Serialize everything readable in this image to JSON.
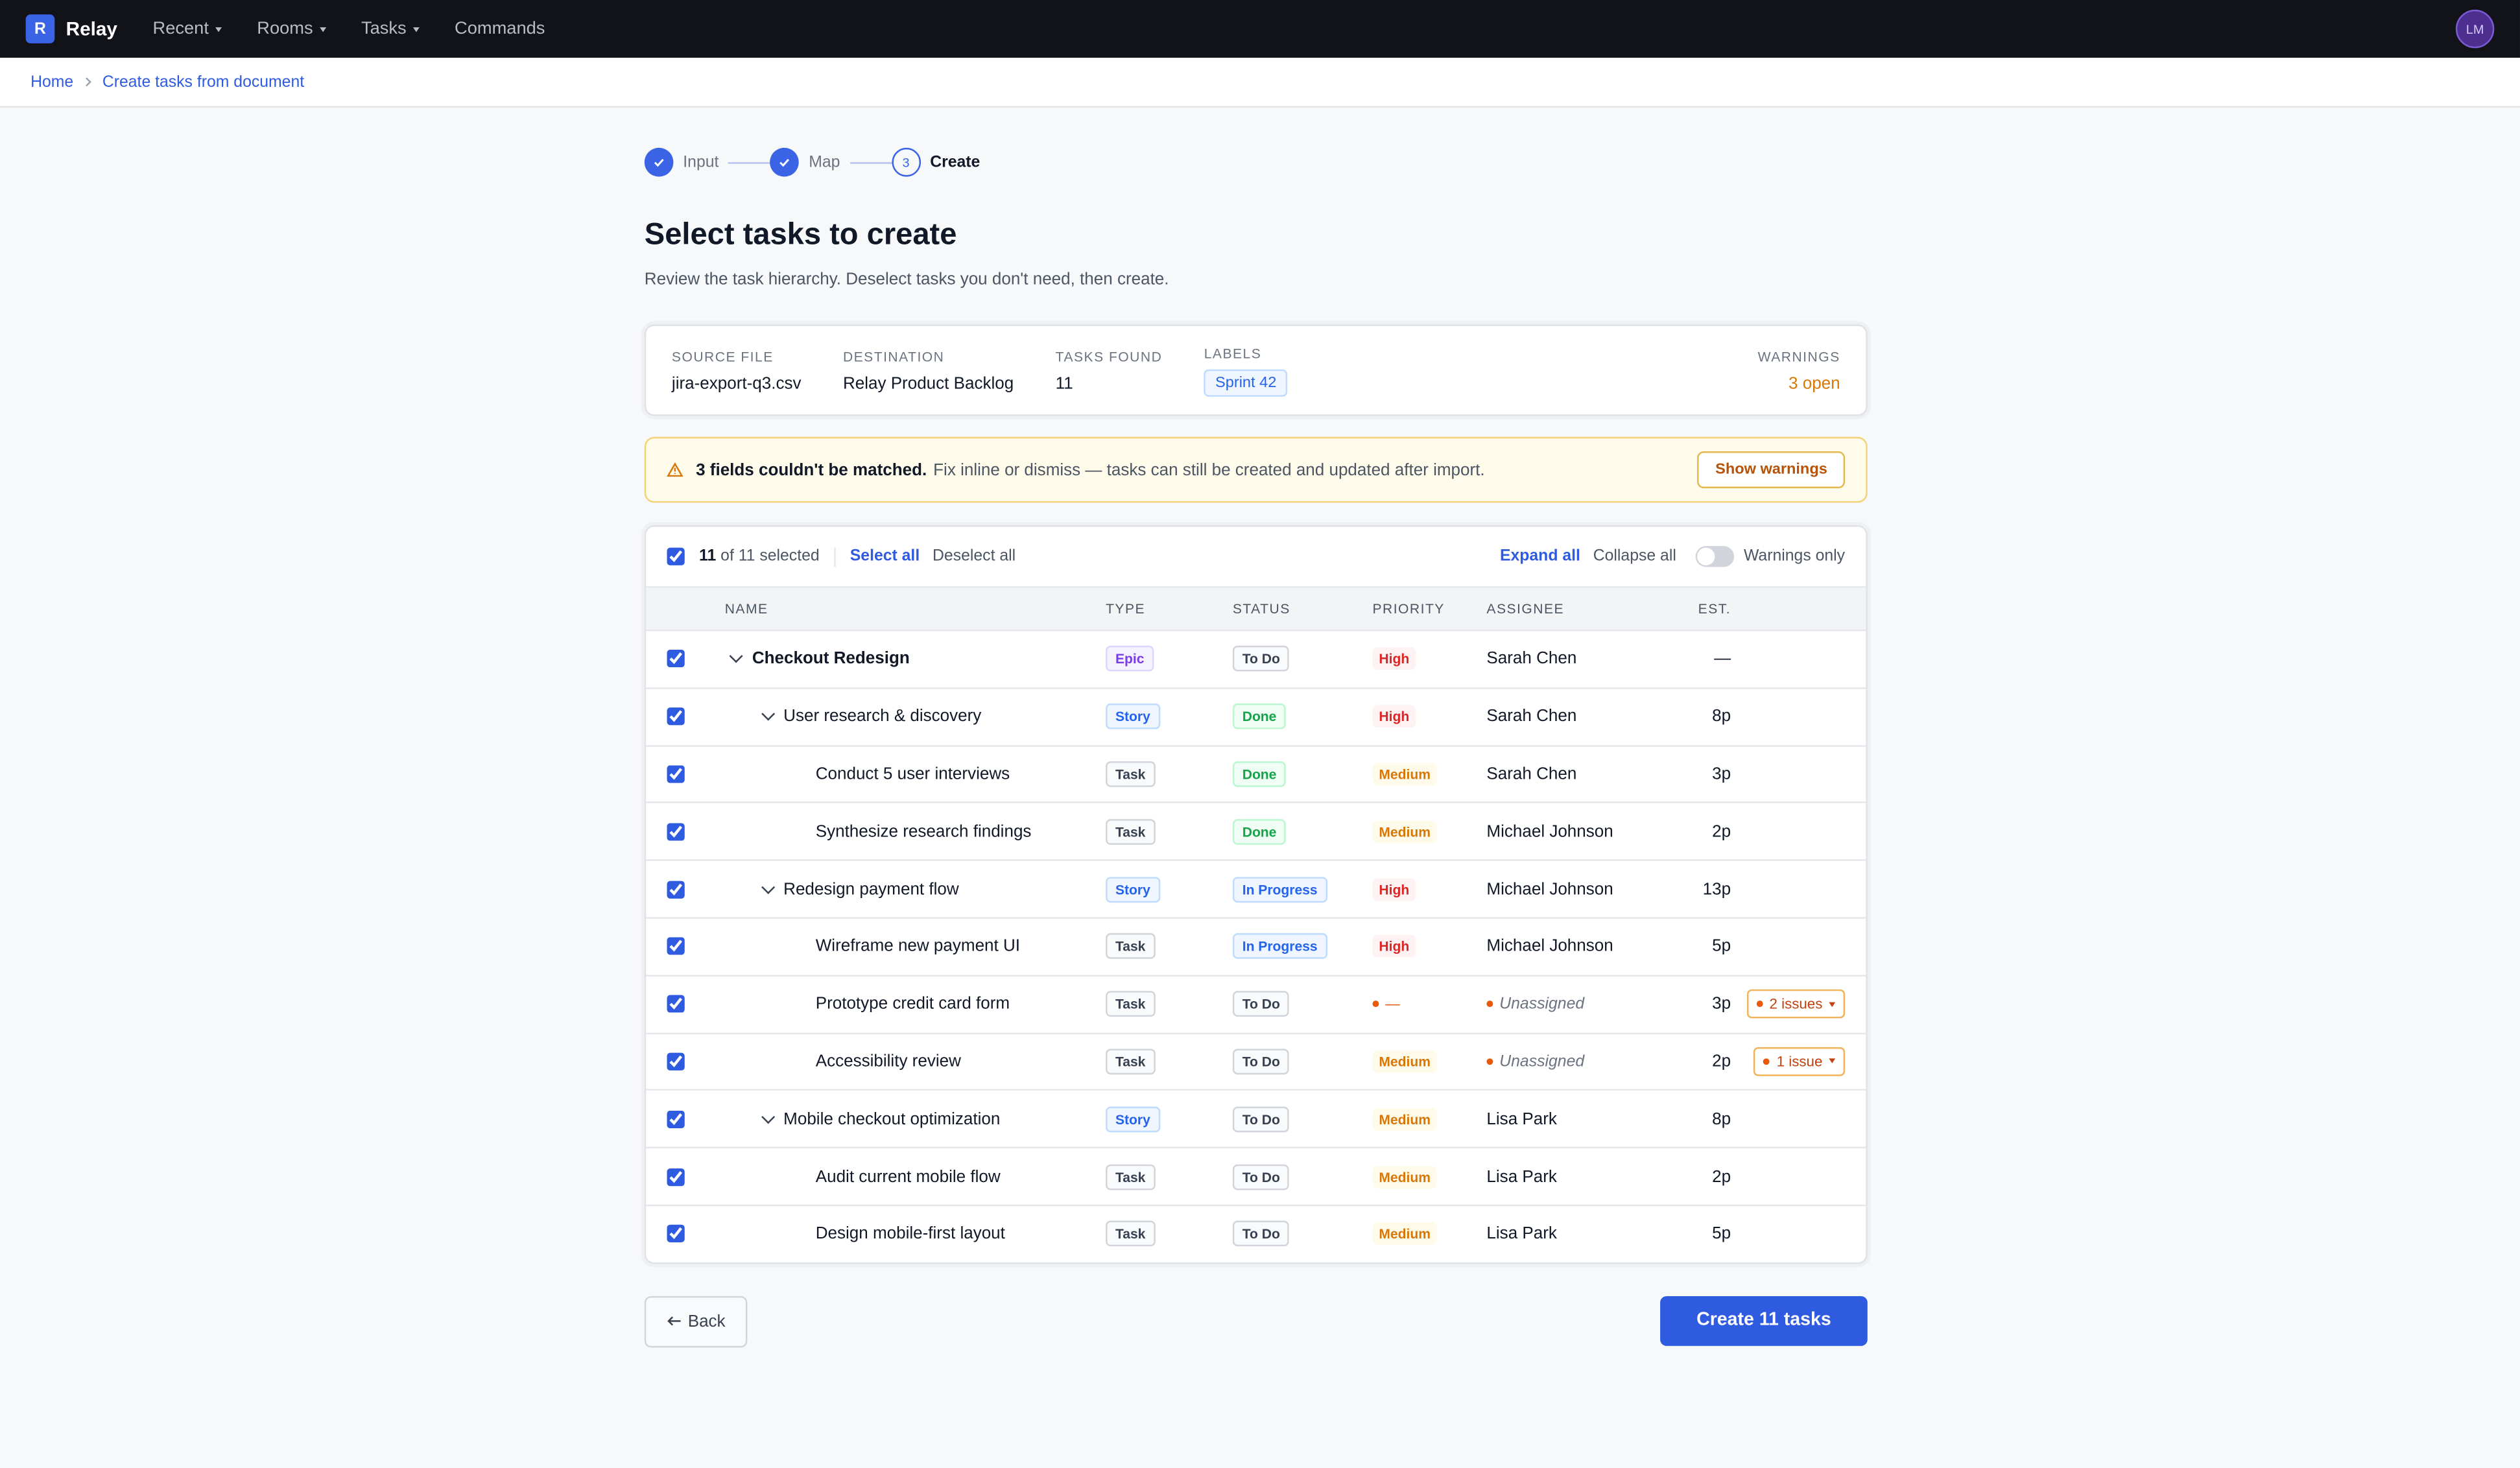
{
  "nav": {
    "logo_letter": "R",
    "brand": "Relay",
    "menu": [
      "Recent",
      "Rooms",
      "Tasks"
    ],
    "commands": "Commands",
    "avatar": "LM"
  },
  "breadcrumb": [
    "Home",
    "Create tasks from document"
  ],
  "steps": [
    {
      "label": "Input",
      "done": true
    },
    {
      "label": "Map",
      "done": true
    },
    {
      "label": "Create",
      "number": "3",
      "done": false
    }
  ],
  "header": {
    "title": "Select tasks to create",
    "subtitle": "Review the task hierarchy. Deselect tasks you don't need, then create."
  },
  "summary": {
    "fields": [
      {
        "label": "SOURCE FILE",
        "value": "jira-export-q3.csv"
      },
      {
        "label": "DESTINATION",
        "value": "Relay Product Backlog"
      },
      {
        "label": "TASKS FOUND",
        "value": "11"
      }
    ],
    "labels_title": "LABELS",
    "labels": [
      "Sprint 42"
    ],
    "warnings_title": "WARNINGS",
    "warnings_value": "3 open"
  },
  "banner": {
    "bold": "3 fields couldn't be matched.",
    "text": "Fix inline or dismiss — tasks can still be created and updated after import.",
    "button": "Show warnings"
  },
  "toolbar": {
    "checked": true,
    "count": "11",
    "count_rest": "of 11 selected",
    "select_all": "Select all",
    "deselect_all": "Deselect all",
    "expand_all": "Expand all",
    "collapse_all": "Collapse all",
    "toggle_on": false,
    "toggle_label": "Warnings only"
  },
  "table": {
    "columns": [
      "NAME",
      "TYPE",
      "STATUS",
      "PRIORITY",
      "ASSIGNEE",
      "EST."
    ],
    "rows": [
      {
        "checked": true,
        "level": 0,
        "expandable": true,
        "name": "Checkout Redesign",
        "type": {
          "text": "Epic",
          "color": "#7c3aed",
          "bg": "#f5f3ff",
          "border": "#ddd6fe"
        },
        "status": {
          "text": "To Do",
          "color": "#374151",
          "bg": "#f9fafb",
          "border": "#d1d5db"
        },
        "priority": {
          "text": "High",
          "color": "#dc2626",
          "bg": "#fef2f2"
        },
        "assignee": {
          "text": "Sarah Chen"
        },
        "est": "—"
      },
      {
        "checked": true,
        "level": 1,
        "expandable": true,
        "name": "User research & discovery",
        "type": {
          "text": "Story",
          "color": "#2563eb",
          "bg": "#eff6ff",
          "border": "#bfdbfe"
        },
        "status": {
          "text": "Done",
          "color": "#16a34a",
          "bg": "#f0fdf4",
          "border": "#bbf7d0"
        },
        "priority": {
          "text": "High",
          "color": "#dc2626",
          "bg": "#fef2f2"
        },
        "assignee": {
          "text": "Sarah Chen"
        },
        "est": "8p"
      },
      {
        "checked": true,
        "level": 2,
        "expandable": false,
        "name": "Conduct 5 user interviews",
        "type": {
          "text": "Task",
          "color": "#374151",
          "bg": "#f9fafb",
          "border": "#d1d5db"
        },
        "status": {
          "text": "Done",
          "color": "#16a34a",
          "bg": "#f0fdf4",
          "border": "#bbf7d0"
        },
        "priority": {
          "text": "Medium",
          "color": "#d97706",
          "bg": "#fffbeb"
        },
        "assignee": {
          "text": "Sarah Chen"
        },
        "est": "3p"
      },
      {
        "checked": true,
        "level": 2,
        "expandable": false,
        "name": "Synthesize research findings",
        "type": {
          "text": "Task",
          "color": "#374151",
          "bg": "#f9fafb",
          "border": "#d1d5db"
        },
        "status": {
          "text": "Done",
          "color": "#16a34a",
          "bg": "#f0fdf4",
          "border": "#bbf7d0"
        },
        "priority": {
          "text": "Medium",
          "color": "#d97706",
          "bg": "#fffbeb"
        },
        "assignee": {
          "text": "Michael Johnson"
        },
        "est": "2p"
      },
      {
        "checked": true,
        "level": 1,
        "expandable": true,
        "name": "Redesign payment flow",
        "type": {
          "text": "Story",
          "color": "#2563eb",
          "bg": "#eff6ff",
          "border": "#bfdbfe"
        },
        "status": {
          "text": "In Progress",
          "color": "#2563eb",
          "bg": "#eff6ff",
          "border": "#bfdbfe"
        },
        "priority": {
          "text": "High",
          "color": "#dc2626",
          "bg": "#fef2f2"
        },
        "assignee": {
          "text": "Michael Johnson"
        },
        "est": "13p"
      },
      {
        "checked": true,
        "level": 2,
        "expandable": false,
        "name": "Wireframe new payment UI",
        "type": {
          "text": "Task",
          "color": "#374151",
          "bg": "#f9fafb",
          "border": "#d1d5db"
        },
        "status": {
          "text": "In Progress",
          "color": "#2563eb",
          "bg": "#eff6ff",
          "border": "#bfdbfe"
        },
        "priority": {
          "text": "High",
          "color": "#dc2626",
          "bg": "#fef2f2"
        },
        "assignee": {
          "text": "Michael Johnson"
        },
        "est": "5p"
      },
      {
        "checked": true,
        "level": 2,
        "expandable": false,
        "name": "Prototype credit card form",
        "type": {
          "text": "Task",
          "color": "#374151",
          "bg": "#f9fafb",
          "border": "#d1d5db"
        },
        "status": {
          "text": "To Do",
          "color": "#374151",
          "bg": "#f9fafb",
          "border": "#d1d5db"
        },
        "priority": {
          "text": "—",
          "color": "#ea580c",
          "flag": true
        },
        "assignee": {
          "text": "Unassigned",
          "flag": true
        },
        "est": "3p",
        "issues": "2 issues"
      },
      {
        "checked": true,
        "level": 2,
        "expandable": false,
        "name": "Accessibility review",
        "type": {
          "text": "Task",
          "color": "#374151",
          "bg": "#f9fafb",
          "border": "#d1d5db"
        },
        "status": {
          "text": "To Do",
          "color": "#374151",
          "bg": "#f9fafb",
          "border": "#d1d5db"
        },
        "priority": {
          "text": "Medium",
          "color": "#d97706",
          "bg": "#fffbeb"
        },
        "assignee": {
          "text": "Unassigned",
          "flag": true
        },
        "est": "2p",
        "issues": "1 issue"
      },
      {
        "checked": true,
        "level": 1,
        "expandable": true,
        "name": "Mobile checkout optimization",
        "type": {
          "text": "Story",
          "color": "#2563eb",
          "bg": "#eff6ff",
          "border": "#bfdbfe"
        },
        "status": {
          "text": "To Do",
          "color": "#374151",
          "bg": "#f9fafb",
          "border": "#d1d5db"
        },
        "priority": {
          "text": "Medium",
          "color": "#d97706",
          "bg": "#fffbeb"
        },
        "assignee": {
          "text": "Lisa Park"
        },
        "est": "8p"
      },
      {
        "checked": true,
        "level": 2,
        "expandable": false,
        "name": "Audit current mobile flow",
        "type": {
          "text": "Task",
          "color": "#374151",
          "bg": "#f9fafb",
          "border": "#d1d5db"
        },
        "status": {
          "text": "To Do",
          "color": "#374151",
          "bg": "#f9fafb",
          "border": "#d1d5db"
        },
        "priority": {
          "text": "Medium",
          "color": "#d97706",
          "bg": "#fffbeb"
        },
        "assignee": {
          "text": "Lisa Park"
        },
        "est": "2p"
      },
      {
        "checked": true,
        "level": 2,
        "expandable": false,
        "name": "Design mobile-first layout",
        "type": {
          "text": "Task",
          "color": "#374151",
          "bg": "#f9fafb",
          "border": "#d1d5db"
        },
        "status": {
          "text": "To Do",
          "color": "#374151",
          "bg": "#f9fafb",
          "border": "#d1d5db"
        },
        "priority": {
          "text": "Medium",
          "color": "#d97706",
          "bg": "#fffbeb"
        },
        "assignee": {
          "text": "Lisa Park"
        },
        "est": "5p"
      }
    ]
  },
  "footer": {
    "back": "Back",
    "create": "Create 11 tasks"
  }
}
